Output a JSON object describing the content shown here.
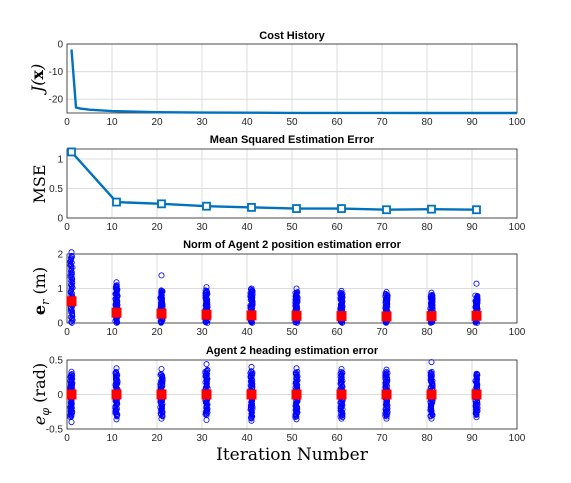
{
  "xlabel": "Iteration Number",
  "chart_data": [
    {
      "type": "line",
      "title": "Cost History",
      "ylabel": "J(x)",
      "xlim": [
        0,
        100
      ],
      "ylim": [
        -25,
        0
      ],
      "xticks": [
        0,
        10,
        20,
        30,
        40,
        50,
        60,
        70,
        80,
        90,
        100
      ],
      "yticks": [
        -20,
        -10,
        0
      ],
      "xtick_labels": [
        "0",
        "10",
        "20",
        "30",
        "40",
        "50",
        "60",
        "70",
        "80",
        "90",
        "100"
      ],
      "ytick_labels": [
        "-20",
        "-10",
        "0"
      ],
      "grid": true,
      "color": "#0072bd",
      "series": [
        {
          "x": [
            1,
            2,
            3,
            5,
            10,
            20,
            30,
            40,
            50,
            60,
            70,
            80,
            90,
            100
          ],
          "y": [
            -2,
            -23,
            -23.4,
            -23.8,
            -24.3,
            -24.7,
            -24.85,
            -24.9,
            -24.95,
            -24.97,
            -24.98,
            -24.99,
            -24.99,
            -25
          ]
        }
      ]
    },
    {
      "type": "line",
      "title": "Mean Squared Estimation Error",
      "ylabel": "MSE",
      "xlim": [
        0,
        100
      ],
      "ylim": [
        0,
        1.17
      ],
      "xticks": [
        0,
        10,
        20,
        30,
        40,
        50,
        60,
        70,
        80,
        90,
        100
      ],
      "yticks": [
        0,
        0.5,
        1
      ],
      "xtick_labels": [
        "0",
        "10",
        "20",
        "30",
        "40",
        "50",
        "60",
        "70",
        "80",
        "90",
        "100"
      ],
      "ytick_labels": [
        "0",
        "0.5",
        "1"
      ],
      "grid": true,
      "color": "#0072bd",
      "marker": "square",
      "series": [
        {
          "x": [
            1,
            11,
            21,
            31,
            41,
            51,
            61,
            71,
            81,
            91
          ],
          "y": [
            1.12,
            0.27,
            0.24,
            0.2,
            0.18,
            0.16,
            0.16,
            0.14,
            0.15,
            0.14
          ]
        }
      ]
    },
    {
      "type": "scatter",
      "title": "Norm of Agent 2 position estimation error",
      "ylabel": "e_r (m)",
      "xlim": [
        0,
        100
      ],
      "ylim": [
        0,
        2
      ],
      "xticks": [
        0,
        10,
        20,
        30,
        40,
        50,
        60,
        70,
        80,
        90,
        100
      ],
      "yticks": [
        0,
        1,
        2
      ],
      "xtick_labels": [
        "0",
        "10",
        "20",
        "30",
        "40",
        "50",
        "60",
        "70",
        "80",
        "90",
        "100"
      ],
      "ytick_labels": [
        "0",
        "1",
        "2"
      ],
      "grid": true,
      "point_color": "#0000ff",
      "mean_color": "#ff0000",
      "columns": [
        {
          "x": 1,
          "min": 0,
          "max": 1.95,
          "outliers": [
            2.05
          ],
          "mean": 0.63
        },
        {
          "x": 11,
          "min": 0,
          "max": 1.1,
          "outliers": [
            1.18
          ],
          "mean": 0.3
        },
        {
          "x": 21,
          "min": 0,
          "max": 0.95,
          "outliers": [
            1.38
          ],
          "mean": 0.27
        },
        {
          "x": 31,
          "min": 0,
          "max": 0.95,
          "outliers": [
            1.04
          ],
          "mean": 0.24
        },
        {
          "x": 41,
          "min": 0,
          "max": 0.98,
          "outliers": [
            1.0
          ],
          "mean": 0.22
        },
        {
          "x": 51,
          "min": 0,
          "max": 0.9,
          "outliers": [
            1.0
          ],
          "mean": 0.21
        },
        {
          "x": 61,
          "min": 0,
          "max": 0.88,
          "outliers": [
            0.93
          ],
          "mean": 0.2
        },
        {
          "x": 71,
          "min": 0,
          "max": 0.85,
          "outliers": [
            0.9
          ],
          "mean": 0.19
        },
        {
          "x": 81,
          "min": 0,
          "max": 0.82,
          "outliers": [
            0.88
          ],
          "mean": 0.2
        },
        {
          "x": 91,
          "min": 0,
          "max": 0.8,
          "outliers": [
            1.14
          ],
          "mean": 0.21
        }
      ]
    },
    {
      "type": "scatter",
      "title": "Agent 2 heading estimation error",
      "ylabel": "e_φ (rad)",
      "xlim": [
        0,
        100
      ],
      "ylim": [
        -0.5,
        0.5
      ],
      "xticks": [
        0,
        10,
        20,
        30,
        40,
        50,
        60,
        70,
        80,
        90,
        100
      ],
      "yticks": [
        -0.5,
        0,
        0.5
      ],
      "xtick_labels": [
        "0",
        "10",
        "20",
        "30",
        "40",
        "50",
        "60",
        "70",
        "80",
        "90",
        "100"
      ],
      "ytick_labels": [
        "-0.5",
        "0",
        "0.5"
      ],
      "grid": true,
      "point_color": "#0000ff",
      "mean_color": "#ff0000",
      "columns": [
        {
          "x": 1,
          "min": -0.33,
          "max": 0.3,
          "outliers": [
            -0.4,
            0.33
          ],
          "mean": 0
        },
        {
          "x": 11,
          "min": -0.32,
          "max": 0.33,
          "outliers": [
            -0.36,
            0.38
          ],
          "mean": 0
        },
        {
          "x": 21,
          "min": -0.32,
          "max": 0.3,
          "outliers": [
            -0.35,
            0.37
          ],
          "mean": 0
        },
        {
          "x": 31,
          "min": -0.3,
          "max": 0.36,
          "outliers": [
            -0.37,
            0.44
          ],
          "mean": 0
        },
        {
          "x": 41,
          "min": -0.35,
          "max": 0.34,
          "outliers": [
            -0.38,
            0.4
          ],
          "mean": 0
        },
        {
          "x": 51,
          "min": -0.33,
          "max": 0.33,
          "outliers": [
            -0.36,
            0.38
          ],
          "mean": 0
        },
        {
          "x": 61,
          "min": -0.33,
          "max": 0.33,
          "outliers": [
            -0.35,
            0.37
          ],
          "mean": 0
        },
        {
          "x": 71,
          "min": -0.32,
          "max": 0.33,
          "outliers": [
            -0.35,
            0.36
          ],
          "mean": 0
        },
        {
          "x": 81,
          "min": -0.32,
          "max": 0.33,
          "outliers": [
            -0.35,
            0.47
          ],
          "mean": 0
        },
        {
          "x": 91,
          "min": -0.3,
          "max": 0.3,
          "outliers": [
            -0.33,
            0.3
          ],
          "mean": 0
        }
      ]
    }
  ]
}
